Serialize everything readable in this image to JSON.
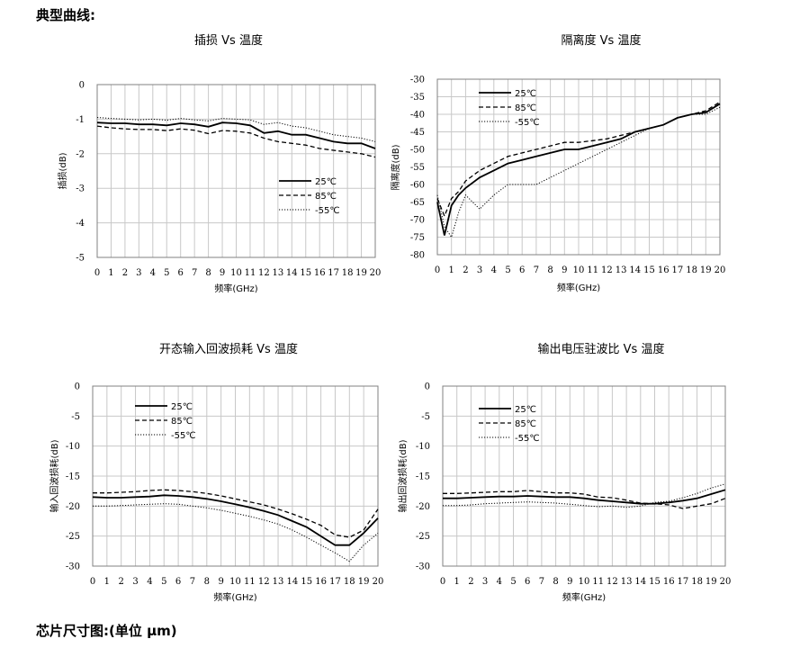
{
  "page": {
    "heading_curves": "典型曲线:",
    "heading_chip": "芯片尺寸图:(单位 μm)"
  },
  "styles": {
    "series_colors": [
      "#000000",
      "#000000",
      "#000000"
    ],
    "series_dash": [
      "solid",
      "dashed",
      "dotted"
    ],
    "grid_color": "#c8c8c8"
  },
  "chart_data": [
    {
      "type": "line",
      "title": "插损 Vs 温度",
      "xlabel": "频率(GHz)",
      "ylabel": "插损(dB)",
      "ylim": [
        -5,
        0
      ],
      "yticks": [
        0,
        -1,
        -2,
        -3,
        -4,
        -5
      ],
      "xlim": [
        0,
        20
      ],
      "xticks": [
        0,
        1,
        2,
        3,
        4,
        5,
        6,
        7,
        8,
        9,
        10,
        11,
        12,
        13,
        14,
        15,
        16,
        17,
        18,
        19,
        20
      ],
      "grid": true,
      "legend_position": "center-right",
      "series": [
        {
          "name": "25℃",
          "x": [
            0,
            1,
            2,
            3,
            4,
            5,
            6,
            7,
            8,
            9,
            10,
            11,
            12,
            13,
            14,
            15,
            16,
            17,
            18,
            19,
            20
          ],
          "values": [
            -1.1,
            -1.12,
            -1.12,
            -1.15,
            -1.15,
            -1.18,
            -1.12,
            -1.15,
            -1.22,
            -1.1,
            -1.12,
            -1.18,
            -1.4,
            -1.35,
            -1.45,
            -1.45,
            -1.55,
            -1.65,
            -1.7,
            -1.7,
            -1.85
          ]
        },
        {
          "name": "85℃",
          "x": [
            0,
            1,
            2,
            3,
            4,
            5,
            6,
            7,
            8,
            9,
            10,
            11,
            12,
            13,
            14,
            15,
            16,
            17,
            18,
            19,
            20
          ],
          "values": [
            -1.2,
            -1.25,
            -1.28,
            -1.3,
            -1.3,
            -1.33,
            -1.28,
            -1.32,
            -1.42,
            -1.33,
            -1.35,
            -1.4,
            -1.55,
            -1.65,
            -1.7,
            -1.75,
            -1.85,
            -1.9,
            -1.95,
            -2.0,
            -2.1
          ]
        },
        {
          "name": "-55℃",
          "x": [
            0,
            1,
            2,
            3,
            4,
            5,
            6,
            7,
            8,
            9,
            10,
            11,
            12,
            13,
            14,
            15,
            16,
            17,
            18,
            19,
            20
          ],
          "values": [
            -0.95,
            -0.98,
            -1.0,
            -1.02,
            -1.0,
            -1.03,
            -0.98,
            -1.02,
            -1.05,
            -0.98,
            -1.0,
            -1.02,
            -1.15,
            -1.1,
            -1.2,
            -1.25,
            -1.35,
            -1.45,
            -1.5,
            -1.55,
            -1.65
          ]
        }
      ]
    },
    {
      "type": "line",
      "title": "隔离度 Vs 温度",
      "xlabel": "频率(GHz)",
      "ylabel": "隔离度(dB)",
      "ylim": [
        -80,
        -30
      ],
      "yticks": [
        -30,
        -35,
        -40,
        -45,
        -50,
        -55,
        -60,
        -65,
        -70,
        -75,
        -80
      ],
      "xlim": [
        0,
        20
      ],
      "xticks": [
        0,
        1,
        2,
        3,
        4,
        5,
        6,
        7,
        8,
        9,
        10,
        11,
        12,
        13,
        14,
        15,
        16,
        17,
        18,
        19,
        20
      ],
      "grid": true,
      "legend_position": "top-left",
      "series": [
        {
          "name": "25℃",
          "x": [
            0,
            0.5,
            1,
            1.5,
            2,
            3,
            4,
            5,
            6,
            7,
            8,
            9,
            10,
            11,
            12,
            13,
            14,
            15,
            16,
            17,
            18,
            19,
            20
          ],
          "values": [
            -65,
            -74.5,
            -66,
            -63,
            -61,
            -58,
            -56,
            -54,
            -53,
            -52,
            -51,
            -50,
            -50,
            -49,
            -48,
            -47,
            -45,
            -44,
            -43,
            -41,
            -40,
            -39.5,
            -37
          ]
        },
        {
          "name": "85℃",
          "x": [
            0,
            0.5,
            1,
            1.5,
            2,
            3,
            4,
            5,
            6,
            7,
            8,
            9,
            10,
            11,
            12,
            13,
            14,
            15,
            16,
            17,
            18,
            19,
            20
          ],
          "values": [
            -64,
            -69,
            -64,
            -62,
            -59,
            -56,
            -54,
            -52,
            -51,
            -50,
            -49,
            -48,
            -48,
            -47.5,
            -47,
            -46,
            -45,
            -44,
            -43,
            -41,
            -40,
            -39,
            -36.5
          ]
        },
        {
          "name": "-55℃",
          "x": [
            0,
            0.5,
            1,
            1.5,
            2,
            3,
            4,
            5,
            6,
            7,
            8,
            9,
            10,
            11,
            12,
            13,
            14,
            15,
            16,
            17,
            18,
            19,
            20
          ],
          "values": [
            -63,
            -72,
            -75,
            -68,
            -63,
            -67,
            -63,
            -60,
            -60,
            -60,
            -58,
            -56,
            -54,
            -52,
            -50,
            -48,
            -46,
            -44,
            -43,
            -41,
            -40,
            -40,
            -38
          ]
        }
      ]
    },
    {
      "type": "line",
      "title": "开态输入回波损耗 Vs 温度",
      "xlabel": "频率(GHz)",
      "ylabel": "输入回波损耗(dB)",
      "ylim": [
        -30,
        0
      ],
      "yticks": [
        0,
        -5,
        -10,
        -15,
        -20,
        -25,
        -30
      ],
      "xlim": [
        0,
        20
      ],
      "xticks": [
        0,
        1,
        2,
        3,
        4,
        5,
        6,
        7,
        8,
        9,
        10,
        11,
        12,
        13,
        14,
        15,
        16,
        17,
        18,
        19,
        20
      ],
      "grid": true,
      "legend_position": "top-left",
      "series": [
        {
          "name": "25℃",
          "x": [
            0,
            1,
            2,
            3,
            4,
            5,
            6,
            7,
            8,
            9,
            10,
            11,
            12,
            13,
            14,
            15,
            16,
            17,
            18,
            19,
            20
          ],
          "values": [
            -18.5,
            -18.6,
            -18.6,
            -18.5,
            -18.4,
            -18.2,
            -18.3,
            -18.5,
            -18.8,
            -19.2,
            -19.7,
            -20.2,
            -20.8,
            -21.5,
            -22.5,
            -23.5,
            -25,
            -26.5,
            -26.5,
            -24.5,
            -22
          ]
        },
        {
          "name": "85℃",
          "x": [
            0,
            1,
            2,
            3,
            4,
            5,
            6,
            7,
            8,
            9,
            10,
            11,
            12,
            13,
            14,
            15,
            16,
            17,
            18,
            19,
            20
          ],
          "values": [
            -17.8,
            -17.8,
            -17.7,
            -17.6,
            -17.4,
            -17.3,
            -17.4,
            -17.6,
            -17.9,
            -18.3,
            -18.8,
            -19.3,
            -19.8,
            -20.5,
            -21.3,
            -22.2,
            -23.2,
            -24.8,
            -25.2,
            -24,
            -20.5
          ]
        },
        {
          "name": "-55℃",
          "x": [
            0,
            1,
            2,
            3,
            4,
            5,
            6,
            7,
            8,
            9,
            10,
            11,
            12,
            13,
            14,
            15,
            16,
            17,
            18,
            19,
            20
          ],
          "values": [
            -20,
            -20,
            -19.9,
            -19.8,
            -19.7,
            -19.6,
            -19.7,
            -20,
            -20.3,
            -20.7,
            -21.2,
            -21.7,
            -22.3,
            -23,
            -24,
            -25.2,
            -26.5,
            -27.8,
            -29.2,
            -26.5,
            -24.5
          ]
        }
      ]
    },
    {
      "type": "line",
      "title": "输出电压驻波比 Vs 温度",
      "xlabel": "频率(GHz)",
      "ylabel": "输出回波损耗(dB)",
      "ylim": [
        -30,
        0
      ],
      "yticks": [
        0,
        -5,
        -10,
        -15,
        -20,
        -25,
        -30
      ],
      "xlim": [
        0,
        20
      ],
      "xticks": [
        0,
        1,
        2,
        3,
        4,
        5,
        6,
        7,
        8,
        9,
        10,
        11,
        12,
        13,
        14,
        15,
        16,
        17,
        18,
        19,
        20
      ],
      "grid": true,
      "legend_position": "top-left",
      "series": [
        {
          "name": "25℃",
          "x": [
            0,
            1,
            2,
            3,
            4,
            5,
            6,
            7,
            8,
            9,
            10,
            11,
            12,
            13,
            14,
            15,
            16,
            17,
            18,
            19,
            20
          ],
          "values": [
            -18.7,
            -18.7,
            -18.6,
            -18.5,
            -18.4,
            -18.4,
            -18.3,
            -18.4,
            -18.5,
            -18.5,
            -18.7,
            -19,
            -19.2,
            -19.4,
            -19.6,
            -19.6,
            -19.4,
            -19.1,
            -18.7,
            -18,
            -17.3
          ]
        },
        {
          "name": "85℃",
          "x": [
            0,
            1,
            2,
            3,
            4,
            5,
            6,
            7,
            8,
            9,
            10,
            11,
            12,
            13,
            14,
            15,
            16,
            17,
            18,
            19,
            20
          ],
          "values": [
            -17.9,
            -17.9,
            -17.8,
            -17.7,
            -17.6,
            -17.6,
            -17.4,
            -17.6,
            -17.8,
            -17.8,
            -18,
            -18.5,
            -18.6,
            -19,
            -19.5,
            -19.6,
            -19.8,
            -20.4,
            -20,
            -19.6,
            -18.7
          ]
        },
        {
          "name": "-55℃",
          "x": [
            0,
            1,
            2,
            3,
            4,
            5,
            6,
            7,
            8,
            9,
            10,
            11,
            12,
            13,
            14,
            15,
            16,
            17,
            18,
            19,
            20
          ],
          "values": [
            -19.9,
            -19.9,
            -19.8,
            -19.6,
            -19.5,
            -19.4,
            -19.3,
            -19.4,
            -19.5,
            -19.7,
            -19.9,
            -20.1,
            -20,
            -20.2,
            -20,
            -19.4,
            -19.2,
            -18.6,
            -17.9,
            -17,
            -16.3
          ]
        }
      ]
    }
  ]
}
